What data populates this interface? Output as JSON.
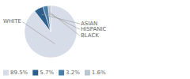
{
  "chart_data": {
    "type": "pie",
    "categories": [
      "WHITE",
      "ASIAN",
      "HISPANIC",
      "BLACK"
    ],
    "values": [
      89.5,
      5.7,
      3.2,
      1.6
    ],
    "value_labels": [
      "89.5%",
      "5.7%",
      "3.2%",
      "1.6%"
    ],
    "colors": [
      "#d6dde8",
      "#2d5f8a",
      "#4a7faa",
      "#b8c4d0"
    ],
    "legend": "lower left"
  }
}
